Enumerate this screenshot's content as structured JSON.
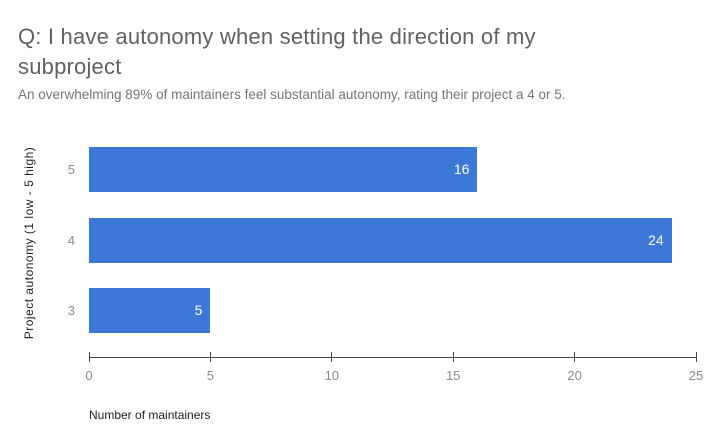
{
  "title": "Q: I have autonomy when setting the direction of my subproject",
  "subtitle": "An overwhelming 89% of maintainers feel substantial autonomy, rating their project a 4 or 5.",
  "colors": {
    "bar": "#3c78d8",
    "bar_label_text": "#ffffff",
    "title_text": "#616161",
    "subtitle_text": "#757575",
    "category_label_text": "#8a8a8a",
    "tick_label_text": "#8a8a8a",
    "axis_title_text": "#222222",
    "axis_line": "#444444",
    "background": "#ffffff"
  },
  "chart_data": {
    "type": "bar",
    "orientation": "horizontal",
    "title": "Q: I have autonomy when setting the direction of my subproject",
    "subtitle": "An overwhelming 89% of maintainers feel substantial autonomy, rating their project a 4 or 5.",
    "categories": [
      "5",
      "4",
      "3"
    ],
    "values": [
      16,
      24,
      5
    ],
    "bar_labels": [
      "16",
      "24",
      "5"
    ],
    "bar_label_position": "inside-end",
    "xlabel": "Number of maintainers",
    "ylabel": "Project autonomy (1 low - 5 high)",
    "xlim": [
      0,
      25
    ],
    "x_ticks": [
      0,
      5,
      10,
      15,
      20,
      25
    ],
    "grid": false,
    "legend": "none"
  }
}
